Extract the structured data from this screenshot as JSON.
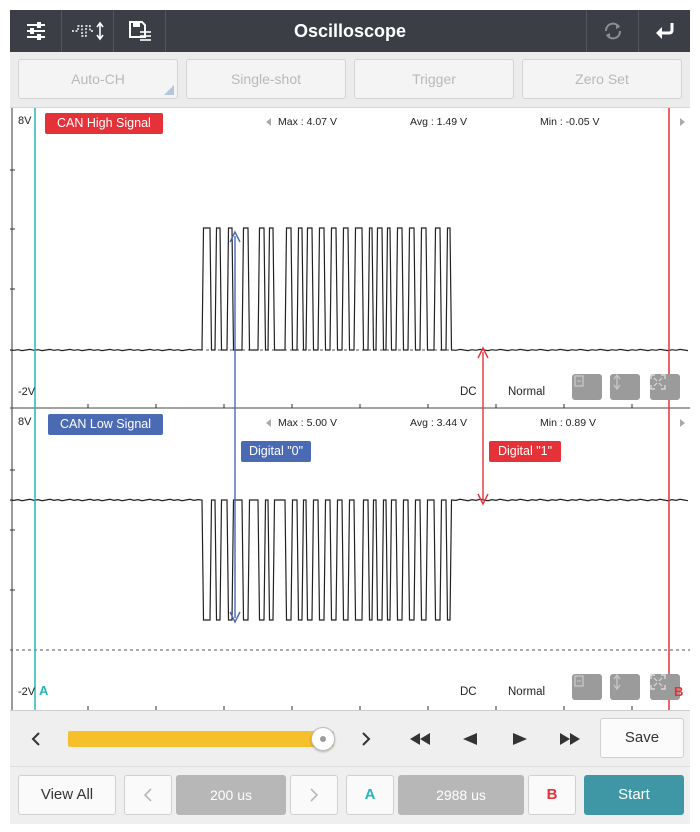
{
  "titlebar": {
    "title": "Oscilloscope",
    "left_icons": [
      "settings-sliders-icon",
      "waveform-adjust-icon",
      "save-list-icon"
    ],
    "right_icons": [
      "refresh-icon",
      "return-icon"
    ]
  },
  "top_buttons": {
    "auto_ch": "Auto-CH",
    "single_shot": "Single-shot",
    "trigger": "Trigger",
    "zero_set": "Zero Set"
  },
  "channel1": {
    "name": "CAN High Signal",
    "y_max_label": "8V",
    "y_min_label": "-2V",
    "max": "Max : 4.07 V",
    "avg": "Avg : 1.49 V",
    "min": "Min : -0.05 V",
    "coupling": "DC",
    "mode": "Normal",
    "color": "#e53238"
  },
  "channel2": {
    "name": "CAN Low Signal",
    "y_max_label": "8V",
    "y_min_label": "-2V",
    "max": "Max : 5.00 V",
    "avg": "Avg : 3.44 V",
    "min": "Min : 0.89 V",
    "coupling": "DC",
    "mode": "Normal",
    "color": "#4a6ab3"
  },
  "annotations": {
    "digital0": "Digital \"0\"",
    "digital1": "Digital \"1\""
  },
  "cursors": {
    "a_label": "A",
    "b_label": "B",
    "a_color": "#27b6b8",
    "b_color": "#e53238"
  },
  "transport": {
    "slider_position": 0.96,
    "save": "Save"
  },
  "bottom": {
    "view_all": "View All",
    "timebase": "200 us",
    "cursor_a": "A",
    "cursor_delta": "2988 us",
    "cursor_b": "B",
    "start": "Start"
  }
}
